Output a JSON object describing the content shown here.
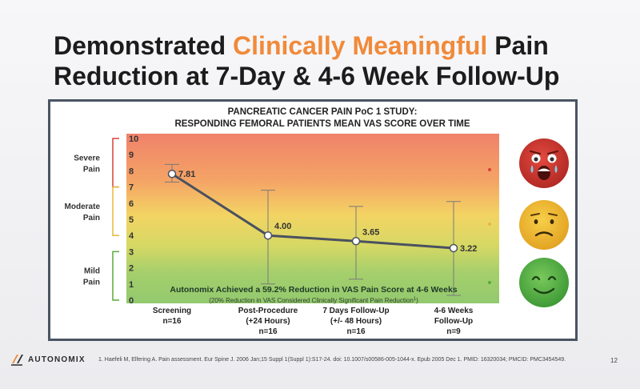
{
  "title": {
    "part1": "Demonstrated ",
    "accent": "Clinically Meaningful",
    "part2": " Pain",
    "line2": "Reduction at 7-Day & 4-6 Week Follow-Up"
  },
  "colors": {
    "accent": "#f08a3a",
    "severe": "#f0826a",
    "moderate": "#f3d463",
    "mild": "#93c96e",
    "line": "#4a5160",
    "severe_bracket": "#d9413a",
    "moderate_bracket": "#e7b83a",
    "mild_bracket": "#5aaa3a"
  },
  "chart_data": {
    "type": "line",
    "title_line1": "PANCREATIC CANCER PAIN PoC 1 STUDY:",
    "title_line2": "RESPONDING FEMORAL PATIENTS MEAN VAS SCORE OVER TIME",
    "ylim": [
      0,
      10
    ],
    "yticks": [
      "0",
      "1",
      "2",
      "3",
      "4",
      "5",
      "6",
      "7",
      "8",
      "9",
      "10"
    ],
    "categories": [
      {
        "line1": "Screening",
        "line2": "n=16",
        "line3": ""
      },
      {
        "line1": "Post-Procedure",
        "line2": "(+24 Hours)",
        "line3": "n=16"
      },
      {
        "line1": "7 Days Follow-Up",
        "line2": "(+/- 48 Hours)",
        "line3": "n=16"
      },
      {
        "line1": "4-6 Weeks",
        "line2": "Follow-Up",
        "line3": "n=9"
      }
    ],
    "series": [
      {
        "name": "Mean VAS Score",
        "values": [
          7.81,
          4.0,
          3.65,
          3.22
        ],
        "labels": [
          "7.81",
          "4.00",
          "3.65",
          "3.22"
        ]
      }
    ],
    "error_bars": [
      {
        "low": 7.3,
        "high": 8.4
      },
      {
        "low": 1.0,
        "high": 6.8
      },
      {
        "low": 1.3,
        "high": 5.8
      },
      {
        "low": 0.3,
        "high": 6.1
      }
    ],
    "pain_levels": [
      {
        "label1": "Severe",
        "label2": "Pain",
        "from": 7,
        "to": 10
      },
      {
        "label1": "Moderate",
        "label2": "Pain",
        "from": 4,
        "to": 7
      },
      {
        "label1": "Mild",
        "label2": "Pain",
        "from": 0,
        "to": 3
      }
    ],
    "annotation": "Autonomix Achieved a 59.2% Reduction in VAS Pain Score at 4-6 Weeks",
    "annotation_sub": "(20% Reduction in VAS Considered Clinically Significant Pain Reduction",
    "annotation_sup": "1",
    "annotation_close": ")"
  },
  "emoji_icons": [
    "crying-face-icon",
    "frowning-face-icon",
    "smiling-face-icon"
  ],
  "footer": {
    "reference": "1. Haefeli M, Elfering A. Pain assessment. Eur Spine J. 2006 Jan;15 Suppl 1(Suppl 1):S17-24. doi: 10.1007/s00586-005-1044-x. Epub 2005 Dec 1. PMID: 16320034; PMCID: PMC3454549.",
    "page_number": "12",
    "logo_text": "AUTONOMIX"
  }
}
